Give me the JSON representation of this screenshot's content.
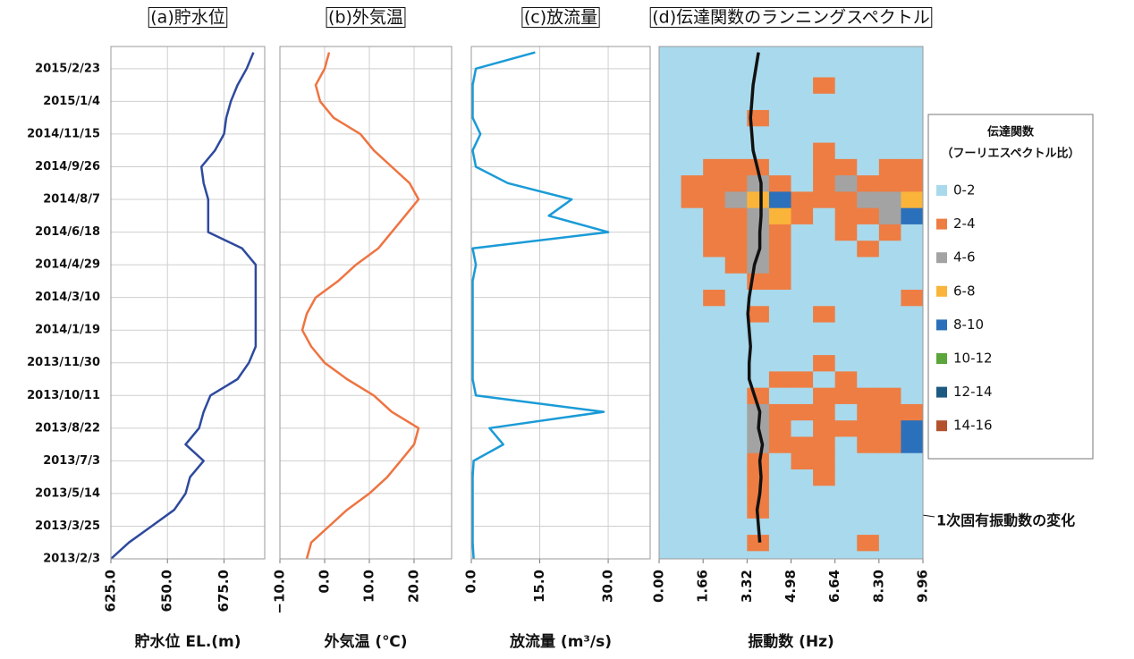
{
  "chart_data": [
    {
      "type": "line",
      "title": "(a)貯水位",
      "xlabel": "貯水位 EL.(m)",
      "grid": true,
      "xlim": [
        625,
        693
      ],
      "xticks": [
        {
          "value": 625,
          "label": "625.0"
        },
        {
          "value": 650,
          "label": "650.0"
        },
        {
          "value": 675,
          "label": "675.0"
        }
      ],
      "ylim": [
        "2013/2/3",
        "2015/3/29"
      ],
      "yticks": [
        "2013/2/3",
        "2013/3/25",
        "2013/5/14",
        "2013/7/3",
        "2013/8/22",
        "2013/10/11",
        "2013/11/30",
        "2014/1/19",
        "2014/3/10",
        "2014/4/29",
        "2014/6/18",
        "2014/8/7",
        "2014/9/26",
        "2014/11/15",
        "2015/1/4",
        "2015/2/23"
      ],
      "y": [
        "2013/2/3",
        "2013/2/28",
        "2013/3/25",
        "2013/4/19",
        "2013/5/14",
        "2013/6/8",
        "2013/7/3",
        "2013/7/28",
        "2013/8/22",
        "2013/9/16",
        "2013/10/11",
        "2013/11/5",
        "2013/11/30",
        "2013/12/25",
        "2014/1/19",
        "2014/2/13",
        "2014/3/10",
        "2014/4/4",
        "2014/4/29",
        "2014/5/24",
        "2014/6/18",
        "2014/7/13",
        "2014/8/7",
        "2014/9/1",
        "2014/9/26",
        "2014/10/21",
        "2014/11/15",
        "2014/12/10",
        "2015/1/4",
        "2015/1/29",
        "2015/2/23",
        "2015/3/20"
      ],
      "color": "#2e4a9e",
      "values": [
        625,
        633,
        643,
        653,
        658,
        660,
        666,
        658,
        664,
        666,
        669,
        681,
        686,
        689,
        689,
        689,
        689,
        689,
        689,
        683,
        668,
        668,
        668,
        666,
        665,
        671,
        675,
        676,
        678,
        681,
        685,
        688
      ]
    },
    {
      "type": "line",
      "title": "(b)外気温",
      "xlabel": "外気温 (℃)",
      "grid": true,
      "xlim": [
        -10,
        28.4
      ],
      "xticks": [
        {
          "value": -10,
          "label": "−10.0"
        },
        {
          "value": 0,
          "label": "0.0"
        },
        {
          "value": 10,
          "label": "10.0"
        },
        {
          "value": 20,
          "label": "20.0"
        }
      ],
      "y": [
        "2013/2/3",
        "2013/2/28",
        "2013/3/25",
        "2013/4/19",
        "2013/5/14",
        "2013/6/8",
        "2013/7/3",
        "2013/7/28",
        "2013/8/22",
        "2013/9/16",
        "2013/10/11",
        "2013/11/5",
        "2013/11/30",
        "2013/12/25",
        "2014/1/19",
        "2014/2/13",
        "2014/3/10",
        "2014/4/4",
        "2014/4/29",
        "2014/5/24",
        "2014/6/18",
        "2014/7/13",
        "2014/8/7",
        "2014/9/1",
        "2014/9/26",
        "2014/10/21",
        "2014/11/15",
        "2014/12/10",
        "2015/1/4",
        "2015/1/29",
        "2015/2/23",
        "2015/3/20"
      ],
      "color": "#ee7442",
      "values": [
        -4,
        -3,
        1,
        5,
        10,
        14,
        17,
        20,
        21,
        15,
        11,
        5,
        0,
        -3,
        -5,
        -4,
        -2,
        3,
        7,
        12,
        15,
        18,
        21,
        19,
        15,
        11,
        8,
        2,
        -1,
        -2,
        0,
        1
      ]
    },
    {
      "type": "line",
      "title": "(c)放流量",
      "xlabel": "放流量 (m³/s)",
      "grid": true,
      "xlim": [
        0,
        39.2
      ],
      "xticks": [
        {
          "value": 0,
          "label": "0.0"
        },
        {
          "value": 15,
          "label": "15.0"
        },
        {
          "value": 30,
          "label": "30.0"
        }
      ],
      "y": [
        "2013/2/3",
        "2013/2/28",
        "2013/3/25",
        "2013/4/19",
        "2013/5/14",
        "2013/6/8",
        "2013/7/3",
        "2013/7/28",
        "2013/8/22",
        "2013/9/16",
        "2013/10/11",
        "2013/11/5",
        "2013/11/30",
        "2013/12/25",
        "2014/1/19",
        "2014/2/13",
        "2014/3/10",
        "2014/4/4",
        "2014/4/29",
        "2014/5/24",
        "2014/6/18",
        "2014/7/13",
        "2014/8/7",
        "2014/9/1",
        "2014/9/26",
        "2014/10/21",
        "2014/11/15",
        "2014/12/10",
        "2015/1/4",
        "2015/1/29",
        "2015/2/23",
        "2015/3/20"
      ],
      "color": "#1a9bd7",
      "values": [
        0.5,
        0.3,
        0.3,
        0.3,
        0.3,
        0.3,
        0.5,
        7,
        4,
        29,
        1,
        0.3,
        0.3,
        0.3,
        0.3,
        0.3,
        0.3,
        0.3,
        1,
        0.3,
        30,
        17,
        22,
        8,
        1,
        0.3,
        2,
        0.3,
        0.3,
        0.3,
        1,
        14
      ]
    },
    {
      "type": "heatmap",
      "title": "(d)伝達関数のランニングスペクトル",
      "xlabel": "振動数 (Hz)",
      "xlim": [
        0,
        9.96
      ],
      "xticks": [
        {
          "value": 0,
          "label": "0.00"
        },
        1.66,
        3.32,
        4.98,
        6.64,
        {
          "value": 8.3,
          "label": "8.30"
        },
        9.96
      ],
      "y": [
        "2013/2/3",
        "2013/2/28",
        "2013/3/25",
        "2013/4/19",
        "2013/5/14",
        "2013/6/8",
        "2013/7/3",
        "2013/7/28",
        "2013/8/22",
        "2013/9/16",
        "2013/10/11",
        "2013/11/5",
        "2013/11/30",
        "2013/12/25",
        "2014/1/19",
        "2014/2/13",
        "2014/3/10",
        "2014/4/4",
        "2014/4/29",
        "2014/5/24",
        "2014/6/18",
        "2014/7/13",
        "2014/8/7",
        "2014/9/1",
        "2014/9/26",
        "2014/10/21",
        "2014/11/15",
        "2014/12/10",
        "2015/1/4",
        "2015/1/29",
        "2015/2/23",
        "2015/3/20"
      ],
      "z": [
        [
          1,
          1,
          1,
          1,
          1,
          1,
          1,
          1,
          1,
          1,
          1,
          1
        ],
        [
          1,
          1,
          1,
          1,
          3,
          1,
          1,
          1,
          1,
          3,
          1,
          1
        ],
        [
          1,
          1,
          1,
          1,
          1,
          1,
          1,
          1,
          1,
          1,
          1,
          1
        ],
        [
          1,
          1,
          1,
          1,
          3,
          1,
          1,
          1,
          1,
          1,
          1,
          1
        ],
        [
          1,
          1,
          1,
          1,
          3,
          1,
          1,
          1,
          1,
          1,
          1,
          1
        ],
        [
          1,
          1,
          1,
          1,
          3,
          1,
          1,
          3,
          1,
          1,
          1,
          1
        ],
        [
          1,
          1,
          1,
          1,
          3,
          1,
          3,
          3,
          1,
          1,
          1,
          1
        ],
        [
          1,
          1,
          1,
          1,
          5,
          3,
          3,
          3,
          1,
          3,
          3,
          9
        ],
        [
          1,
          1,
          1,
          1,
          5,
          3,
          1,
          3,
          3,
          3,
          3,
          9
        ],
        [
          1,
          1,
          1,
          1,
          5,
          3,
          3,
          3,
          1,
          3,
          3,
          3
        ],
        [
          1,
          1,
          1,
          1,
          3,
          1,
          1,
          3,
          3,
          3,
          3,
          1
        ],
        [
          1,
          1,
          1,
          1,
          1,
          3,
          3,
          1,
          3,
          1,
          1,
          1
        ],
        [
          1,
          1,
          1,
          1,
          1,
          1,
          1,
          3,
          1,
          1,
          1,
          1
        ],
        [
          1,
          1,
          1,
          1,
          1,
          1,
          1,
          1,
          1,
          1,
          1,
          1
        ],
        [
          1,
          1,
          1,
          1,
          1,
          1,
          1,
          1,
          1,
          1,
          1,
          1
        ],
        [
          1,
          1,
          1,
          1,
          3,
          1,
          1,
          3,
          1,
          1,
          1,
          1
        ],
        [
          1,
          1,
          3,
          1,
          1,
          1,
          1,
          1,
          1,
          1,
          1,
          3
        ],
        [
          1,
          1,
          1,
          1,
          3,
          3,
          1,
          1,
          1,
          1,
          1,
          1
        ],
        [
          1,
          1,
          1,
          3,
          5,
          3,
          1,
          1,
          1,
          1,
          1,
          1
        ],
        [
          1,
          1,
          3,
          3,
          5,
          3,
          1,
          1,
          1,
          3,
          1,
          1
        ],
        [
          1,
          1,
          3,
          3,
          5,
          3,
          1,
          1,
          3,
          1,
          3,
          1
        ],
        [
          1,
          1,
          3,
          3,
          5,
          7,
          3,
          1,
          3,
          3,
          5,
          9
        ],
        [
          1,
          3,
          3,
          5,
          7,
          9,
          3,
          3,
          3,
          5,
          5,
          7
        ],
        [
          1,
          3,
          3,
          3,
          5,
          3,
          1,
          3,
          5,
          3,
          3,
          3
        ],
        [
          1,
          1,
          3,
          3,
          3,
          1,
          1,
          3,
          3,
          1,
          3,
          3
        ],
        [
          1,
          1,
          1,
          1,
          1,
          1,
          1,
          3,
          1,
          1,
          1,
          1
        ],
        [
          1,
          1,
          1,
          1,
          1,
          1,
          1,
          1,
          1,
          1,
          1,
          1
        ],
        [
          1,
          1,
          1,
          1,
          3,
          1,
          1,
          1,
          1,
          1,
          1,
          1
        ],
        [
          1,
          1,
          1,
          1,
          1,
          1,
          1,
          1,
          1,
          1,
          1,
          1
        ],
        [
          1,
          1,
          1,
          1,
          1,
          1,
          1,
          3,
          1,
          1,
          1,
          1
        ],
        [
          1,
          1,
          1,
          1,
          1,
          1,
          1,
          1,
          1,
          1,
          1,
          1
        ],
        [
          1,
          1,
          1,
          1,
          1,
          1,
          1,
          1,
          1,
          1,
          1,
          1
        ]
      ],
      "legend": {
        "title": "伝達関数",
        "subtitle": "（フーリエスペクトル比）",
        "categories": [
          "0-2",
          "2-4",
          "4-6",
          "6-8",
          "8-10",
          "10-12",
          "12-14",
          "14-16"
        ],
        "colors": [
          "#a9d9ec",
          "#ee7d43",
          "#a3a3a3",
          "#fbb43a",
          "#2b70bb",
          "#5aa63a",
          "#1d5a82",
          "#b3522d"
        ]
      },
      "series": [
        {
          "color": "#111111",
          "values": [
            null,
            3.8,
            3.75,
            3.7,
            3.8,
            3.85,
            3.8,
            3.9,
            3.75,
            3.8,
            3.6,
            3.4,
            3.4,
            3.45,
            3.4,
            3.35,
            3.4,
            3.5,
            3.6,
            3.8,
            3.8,
            3.85,
            3.85,
            3.85,
            3.7,
            3.55,
            3.5,
            3.45,
            3.5,
            3.55,
            3.65,
            3.75
          ]
        }
      ],
      "annotation": "1次固有振動数の変化"
    }
  ]
}
